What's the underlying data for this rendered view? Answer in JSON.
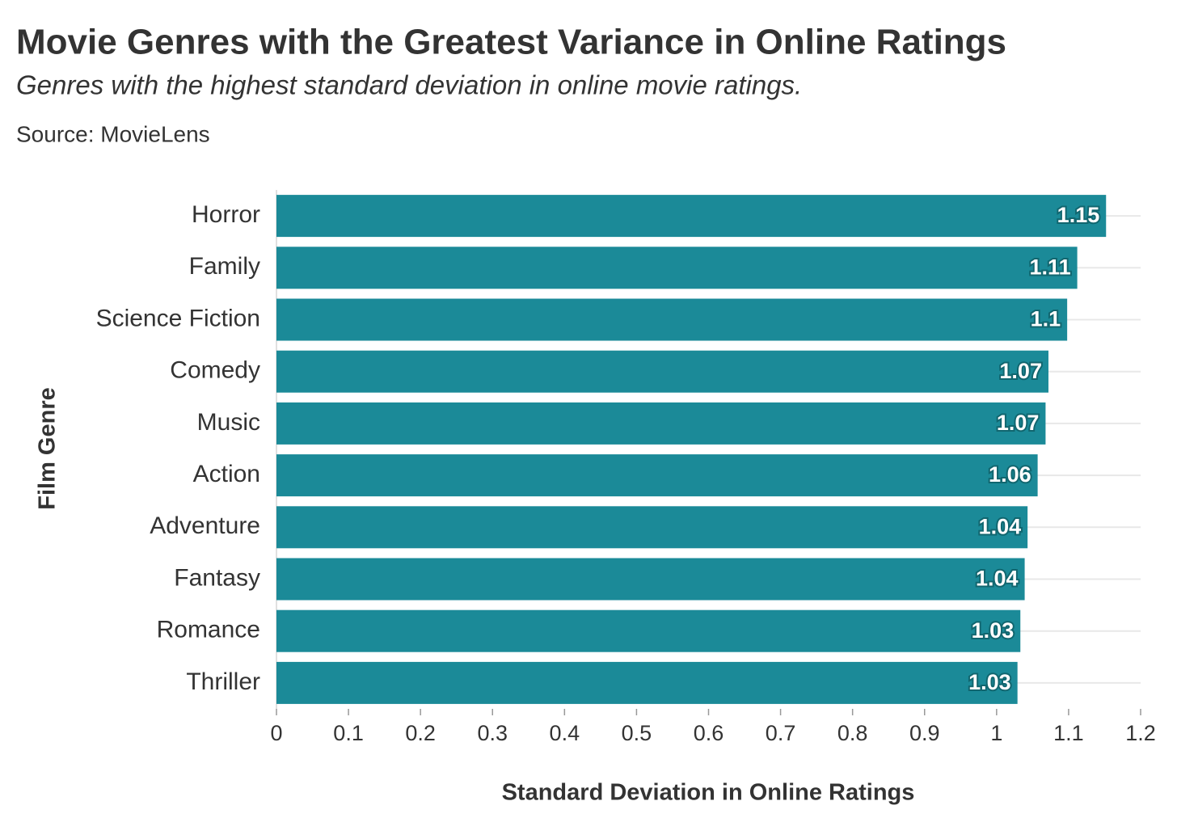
{
  "chart_data": {
    "type": "bar",
    "orientation": "horizontal",
    "title": "Movie Genres with the Greatest Variance in Online Ratings",
    "subtitle": "Genres with the highest standard deviation in online movie ratings.",
    "source": "Source: MovieLens",
    "x_label": "Standard Deviation in Online Ratings",
    "y_label": "Film Genre",
    "categories": [
      "Horror",
      "Family",
      "Science Fiction",
      "Comedy",
      "Music",
      "Action",
      "Adventure",
      "Fantasy",
      "Romance",
      "Thriller"
    ],
    "values": [
      1.152,
      1.112,
      1.098,
      1.072,
      1.068,
      1.057,
      1.043,
      1.039,
      1.033,
      1.029
    ],
    "value_labels": [
      "1.15",
      "1.11",
      "1.1",
      "1.07",
      "1.07",
      "1.06",
      "1.04",
      "1.04",
      "1.03",
      "1.03"
    ],
    "color": "#1b8a98",
    "xlim": [
      0,
      1.2
    ],
    "xticks": [
      0,
      0.1,
      0.2,
      0.3,
      0.4,
      0.5,
      0.6,
      0.7,
      0.8,
      0.9,
      1,
      1.1,
      1.2
    ],
    "grid": true
  }
}
